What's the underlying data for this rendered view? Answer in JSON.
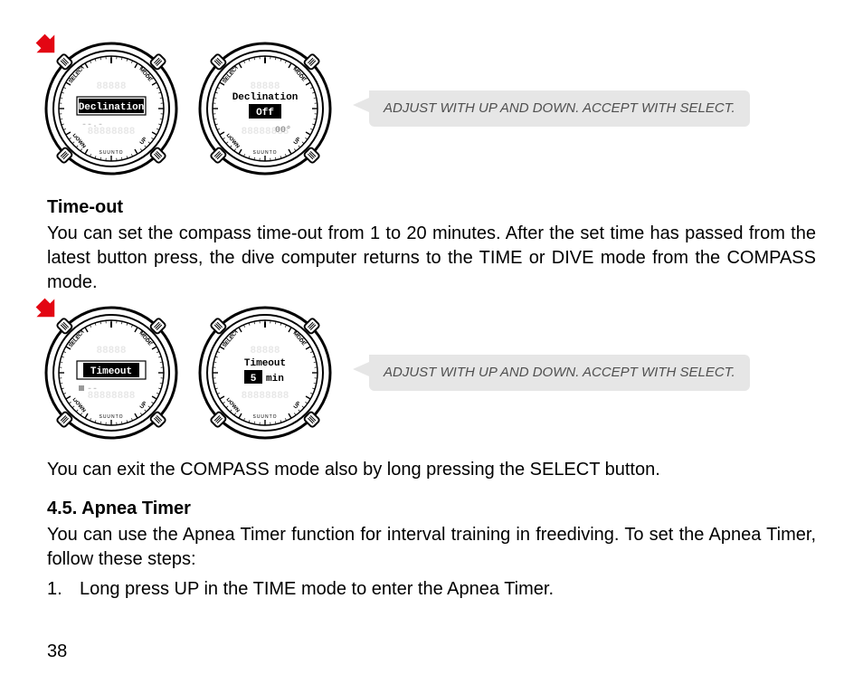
{
  "diagram1": {
    "left_label": "Declination",
    "right_label_top": "Declination",
    "right_label_mid": "Off",
    "right_small": "00°",
    "button_labels": [
      "SELECT",
      "MODE",
      "DOWN",
      "UP"
    ],
    "callout": "ADJUST WITH UP AND DOWN. ACCEPT WITH SELECT."
  },
  "timeout": {
    "heading": "Time-out",
    "para": "You can set the compass time-out from 1 to 20 minutes. After the set time has passed from the latest button press, the dive computer returns to the TIME or DIVE mode from the COMPASS mode."
  },
  "diagram2": {
    "left_label": "Timeout",
    "right_label_top": "Timeout",
    "right_value": "5",
    "right_unit": "min",
    "button_labels": [
      "SELECT",
      "MODE",
      "DOWN",
      "UP"
    ],
    "callout": "ADJUST WITH UP AND DOWN. ACCEPT WITH SELECT."
  },
  "exit_text": "You can exit the COMPASS mode also by long pressing the SELECT button.",
  "apnea": {
    "heading": "4.5. Apnea Timer",
    "para": "You can use the Apnea Timer function for interval training in freediving. To set the Apnea Timer, follow these steps:",
    "step1_num": "1.",
    "step1_text": "Long press UP in the TIME mode to enter the Apnea Timer."
  },
  "page_number": "38",
  "arrow_color": "#e30613",
  "callout_bg": "#e6e6e6"
}
